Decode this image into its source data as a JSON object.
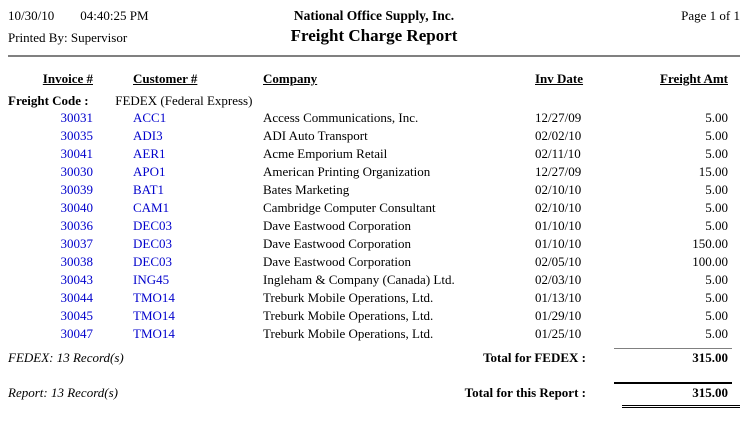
{
  "header": {
    "date": "10/30/10",
    "time": "04:40:25 PM",
    "printed_by": "Printed By: Supervisor",
    "company": "National Office Supply, Inc.",
    "title": "Freight Charge Report",
    "page_info": "Page 1 of 1"
  },
  "table": {
    "columns": {
      "invoice": "Invoice #",
      "customer": "Customer #",
      "company": "Company",
      "inv_date": "Inv Date",
      "freight_amt": "Freight Amt"
    },
    "group": {
      "label": "Freight Code :",
      "value": "FEDEX (Federal Express)"
    },
    "rows": [
      {
        "invoice": "30031",
        "customer": "ACC1",
        "company": "Access Communications, Inc.",
        "inv_date": "12/27/09",
        "freight_amt": "5.00"
      },
      {
        "invoice": "30035",
        "customer": "ADI3",
        "company": "ADI Auto Transport",
        "inv_date": "02/02/10",
        "freight_amt": "5.00"
      },
      {
        "invoice": "30041",
        "customer": "AER1",
        "company": "Acme Emporium Retail",
        "inv_date": "02/11/10",
        "freight_amt": "5.00"
      },
      {
        "invoice": "30030",
        "customer": "APO1",
        "company": "American Printing Organization",
        "inv_date": "12/27/09",
        "freight_amt": "15.00"
      },
      {
        "invoice": "30039",
        "customer": "BAT1",
        "company": "Bates Marketing",
        "inv_date": "02/10/10",
        "freight_amt": "5.00"
      },
      {
        "invoice": "30040",
        "customer": "CAM1",
        "company": "Cambridge Computer Consultant",
        "inv_date": "02/10/10",
        "freight_amt": "5.00"
      },
      {
        "invoice": "30036",
        "customer": "DEC03",
        "company": "Dave Eastwood Corporation",
        "inv_date": "01/10/10",
        "freight_amt": "5.00"
      },
      {
        "invoice": "30037",
        "customer": "DEC03",
        "company": "Dave Eastwood Corporation",
        "inv_date": "01/10/10",
        "freight_amt": "150.00"
      },
      {
        "invoice": "30038",
        "customer": "DEC03",
        "company": "Dave Eastwood Corporation",
        "inv_date": "02/05/10",
        "freight_amt": "100.00"
      },
      {
        "invoice": "30043",
        "customer": "ING45",
        "company": "Ingleham & Company (Canada) Ltd.",
        "inv_date": "02/03/10",
        "freight_amt": "5.00"
      },
      {
        "invoice": "30044",
        "customer": "TMO14",
        "company": "Treburk Mobile Operations, Ltd.",
        "inv_date": "01/13/10",
        "freight_amt": "5.00"
      },
      {
        "invoice": "30045",
        "customer": "TMO14",
        "company": "Treburk Mobile Operations, Ltd.",
        "inv_date": "01/29/10",
        "freight_amt": "5.00"
      },
      {
        "invoice": "30047",
        "customer": "TMO14",
        "company": "Treburk Mobile Operations, Ltd.",
        "inv_date": "01/25/10",
        "freight_amt": "5.00"
      }
    ]
  },
  "group_footer": {
    "record_count": "FEDEX: 13 Record(s)",
    "total_label": "Total for FEDEX :",
    "total_value": "315.00"
  },
  "report_footer": {
    "record_count": "Report: 13 Record(s)",
    "total_label": "Total for this Report :",
    "total_value": "315.00"
  },
  "colors": {
    "link_blue": "#0000cc",
    "rule_gray": "#808080",
    "text_black": "#000000",
    "background": "#ffffff"
  }
}
